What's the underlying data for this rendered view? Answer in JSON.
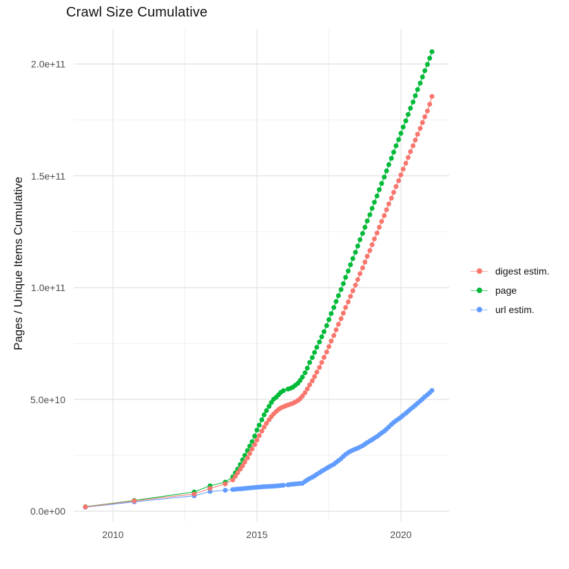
{
  "title": "Crawl Size Cumulative",
  "y_axis": {
    "label": "Pages / Unique Items Cumulative",
    "ticks": [
      {
        "label": "0.0e+00",
        "value_e9": 0
      },
      {
        "label": "5.0e+10",
        "value_e9": 50
      },
      {
        "label": "1.0e+11",
        "value_e9": 100
      },
      {
        "label": "1.5e+11",
        "value_e9": 150
      },
      {
        "label": "2.0e+11",
        "value_e9": 200
      }
    ]
  },
  "x_axis": {
    "ticks": [
      {
        "label": "2010",
        "value": 2010
      },
      {
        "label": "2015",
        "value": 2015
      },
      {
        "label": "2020",
        "value": 2020
      }
    ]
  },
  "legend": {
    "position": "right",
    "items": [
      {
        "label": "digest estim.",
        "color": "#F8766D"
      },
      {
        "label": "page",
        "color": "#00BA38"
      },
      {
        "label": "url estim.",
        "color": "#619CFF"
      }
    ]
  },
  "chart_data": {
    "type": "scatter",
    "title": "Crawl Size Cumulative",
    "xlabel": "",
    "ylabel": "Pages / Unique Items Cumulative",
    "x_unit": "year (decimal)",
    "y_unit": "count, stored as billions (1e9)",
    "xlim": [
      2008.64,
      2021.67
    ],
    "ylim_e9": [
      -4.6,
      215.7
    ],
    "grid": true,
    "legend_position": "right",
    "x_major_ticks": [
      2010,
      2015,
      2020
    ],
    "x_minor_ticks": [
      2012.5,
      2017.5
    ],
    "y_major_ticks_e9": [
      0,
      50,
      100,
      150,
      200
    ],
    "y_minor_ticks_e9": [
      25,
      75,
      125,
      175
    ],
    "series": [
      {
        "name": "page",
        "color": "#00BA38",
        "points": [
          [
            2009.04,
            2.0
          ],
          [
            2010.74,
            4.8
          ],
          [
            2012.82,
            8.6
          ],
          [
            2013.37,
            11.4
          ],
          [
            2013.9,
            13.0
          ],
          [
            2014.16,
            15.4
          ],
          [
            2014.25,
            17.2
          ],
          [
            2014.33,
            18.9
          ],
          [
            2014.42,
            20.9
          ],
          [
            2014.5,
            23.0
          ],
          [
            2014.58,
            25.0
          ],
          [
            2014.67,
            27.1
          ],
          [
            2014.75,
            29.1
          ],
          [
            2014.83,
            31.1
          ],
          [
            2014.92,
            33.6
          ],
          [
            2015.0,
            36.3
          ],
          [
            2015.08,
            38.5
          ],
          [
            2015.17,
            40.9
          ],
          [
            2015.25,
            43.1
          ],
          [
            2015.33,
            45.0
          ],
          [
            2015.42,
            46.9
          ],
          [
            2015.5,
            48.6
          ],
          [
            2015.58,
            50.1
          ],
          [
            2015.67,
            51.0
          ],
          [
            2015.75,
            52.1
          ],
          [
            2015.83,
            53.2
          ],
          [
            2015.92,
            53.9
          ],
          [
            2016.08,
            54.6
          ],
          [
            2016.17,
            55.0
          ],
          [
            2016.25,
            55.5
          ],
          [
            2016.33,
            56.3
          ],
          [
            2016.42,
            57.2
          ],
          [
            2016.5,
            58.5
          ],
          [
            2016.58,
            60.0
          ],
          [
            2016.67,
            61.9
          ],
          [
            2016.75,
            64.0
          ],
          [
            2016.83,
            66.5
          ],
          [
            2016.92,
            68.7
          ],
          [
            2017.0,
            71.0
          ],
          [
            2017.08,
            73.3
          ],
          [
            2017.17,
            75.7
          ],
          [
            2017.25,
            78.0
          ],
          [
            2017.33,
            80.3
          ],
          [
            2017.42,
            83.0
          ],
          [
            2017.5,
            85.7
          ],
          [
            2017.58,
            88.4
          ],
          [
            2017.67,
            91.1
          ],
          [
            2017.75,
            93.8
          ],
          [
            2017.83,
            96.4
          ],
          [
            2017.92,
            99.1
          ],
          [
            2018.0,
            101.8
          ],
          [
            2018.08,
            104.6
          ],
          [
            2018.17,
            107.4
          ],
          [
            2018.25,
            110.2
          ],
          [
            2018.33,
            113.0
          ],
          [
            2018.42,
            115.8
          ],
          [
            2018.5,
            118.6
          ],
          [
            2018.58,
            121.4
          ],
          [
            2018.67,
            124.2
          ],
          [
            2018.75,
            127.0
          ],
          [
            2018.83,
            129.8
          ],
          [
            2018.92,
            132.6
          ],
          [
            2019.0,
            135.4
          ],
          [
            2019.08,
            138.2
          ],
          [
            2019.17,
            141.0
          ],
          [
            2019.25,
            143.8
          ],
          [
            2019.33,
            146.6
          ],
          [
            2019.42,
            149.4
          ],
          [
            2019.5,
            152.2
          ],
          [
            2019.58,
            155.0
          ],
          [
            2019.67,
            157.8
          ],
          [
            2019.75,
            160.6
          ],
          [
            2019.83,
            163.4
          ],
          [
            2019.92,
            166.2
          ],
          [
            2020.0,
            169.0
          ],
          [
            2020.08,
            171.8
          ],
          [
            2020.17,
            174.6
          ],
          [
            2020.25,
            177.4
          ],
          [
            2020.33,
            180.2
          ],
          [
            2020.42,
            183.0
          ],
          [
            2020.5,
            185.8
          ],
          [
            2020.58,
            188.6
          ],
          [
            2020.67,
            191.4
          ],
          [
            2020.75,
            194.2
          ],
          [
            2020.83,
            197.0
          ],
          [
            2020.92,
            199.8
          ],
          [
            2021.0,
            202.6
          ],
          [
            2021.08,
            205.5
          ]
        ]
      },
      {
        "name": "url estim.",
        "color": "#619CFF",
        "points": [
          [
            2009.04,
            1.8
          ],
          [
            2010.74,
            4.2
          ],
          [
            2012.82,
            6.9
          ],
          [
            2013.37,
            8.8
          ],
          [
            2013.9,
            9.4
          ],
          [
            2014.16,
            9.7
          ],
          [
            2014.25,
            9.8
          ],
          [
            2014.33,
            9.9
          ],
          [
            2014.42,
            10.0
          ],
          [
            2014.5,
            10.1
          ],
          [
            2014.58,
            10.2
          ],
          [
            2014.67,
            10.3
          ],
          [
            2014.75,
            10.4
          ],
          [
            2014.83,
            10.5
          ],
          [
            2014.92,
            10.6
          ],
          [
            2015.0,
            10.7
          ],
          [
            2015.08,
            10.8
          ],
          [
            2015.17,
            10.9
          ],
          [
            2015.25,
            11.0
          ],
          [
            2015.33,
            11.0
          ],
          [
            2015.42,
            11.1
          ],
          [
            2015.5,
            11.1
          ],
          [
            2015.58,
            11.2
          ],
          [
            2015.67,
            11.3
          ],
          [
            2015.75,
            11.4
          ],
          [
            2015.83,
            11.5
          ],
          [
            2015.92,
            11.6
          ],
          [
            2016.08,
            11.8
          ],
          [
            2016.17,
            12.0
          ],
          [
            2016.25,
            12.1
          ],
          [
            2016.33,
            12.2
          ],
          [
            2016.42,
            12.3
          ],
          [
            2016.5,
            12.4
          ],
          [
            2016.58,
            12.5
          ],
          [
            2016.67,
            13.3
          ],
          [
            2016.75,
            14.0
          ],
          [
            2016.83,
            14.6
          ],
          [
            2016.92,
            15.2
          ],
          [
            2017.0,
            15.8
          ],
          [
            2017.08,
            16.5
          ],
          [
            2017.17,
            17.2
          ],
          [
            2017.25,
            17.9
          ],
          [
            2017.33,
            18.5
          ],
          [
            2017.42,
            19.2
          ],
          [
            2017.5,
            19.8
          ],
          [
            2017.58,
            20.4
          ],
          [
            2017.67,
            21.0
          ],
          [
            2017.75,
            21.8
          ],
          [
            2017.83,
            22.6
          ],
          [
            2017.92,
            23.5
          ],
          [
            2018.0,
            24.5
          ],
          [
            2018.08,
            25.4
          ],
          [
            2018.17,
            26.2
          ],
          [
            2018.25,
            26.8
          ],
          [
            2018.33,
            27.3
          ],
          [
            2018.42,
            27.8
          ],
          [
            2018.5,
            28.2
          ],
          [
            2018.58,
            28.7
          ],
          [
            2018.67,
            29.3
          ],
          [
            2018.75,
            30.0
          ],
          [
            2018.83,
            30.7
          ],
          [
            2018.92,
            31.4
          ],
          [
            2019.0,
            32.0
          ],
          [
            2019.08,
            32.7
          ],
          [
            2019.17,
            33.4
          ],
          [
            2019.25,
            34.2
          ],
          [
            2019.33,
            35.0
          ],
          [
            2019.42,
            35.8
          ],
          [
            2019.5,
            36.7
          ],
          [
            2019.58,
            37.7
          ],
          [
            2019.67,
            38.8
          ],
          [
            2019.75,
            39.7
          ],
          [
            2019.83,
            40.5
          ],
          [
            2019.92,
            41.3
          ],
          [
            2020.0,
            42.0
          ],
          [
            2020.08,
            42.9
          ],
          [
            2020.17,
            43.8
          ],
          [
            2020.25,
            44.7
          ],
          [
            2020.33,
            45.6
          ],
          [
            2020.42,
            46.5
          ],
          [
            2020.5,
            47.4
          ],
          [
            2020.58,
            48.3
          ],
          [
            2020.67,
            49.3
          ],
          [
            2020.75,
            50.2
          ],
          [
            2020.83,
            51.2
          ],
          [
            2020.92,
            52.1
          ],
          [
            2021.0,
            53.0
          ],
          [
            2021.08,
            54.0
          ]
        ]
      },
      {
        "name": "digest estim.",
        "color": "#F8766D",
        "points": [
          [
            2009.04,
            1.9
          ],
          [
            2010.74,
            4.6
          ],
          [
            2012.82,
            7.7
          ],
          [
            2013.37,
            10.2
          ],
          [
            2013.9,
            12.2
          ],
          [
            2014.16,
            14.0
          ],
          [
            2014.25,
            15.6
          ],
          [
            2014.33,
            17.2
          ],
          [
            2014.42,
            18.8
          ],
          [
            2014.5,
            20.3
          ],
          [
            2014.58,
            22.0
          ],
          [
            2014.67,
            23.8
          ],
          [
            2014.75,
            25.8
          ],
          [
            2014.83,
            27.8
          ],
          [
            2014.92,
            29.8
          ],
          [
            2015.0,
            31.8
          ],
          [
            2015.08,
            33.8
          ],
          [
            2015.17,
            35.8
          ],
          [
            2015.25,
            37.6
          ],
          [
            2015.33,
            39.3
          ],
          [
            2015.42,
            40.9
          ],
          [
            2015.5,
            42.3
          ],
          [
            2015.58,
            43.5
          ],
          [
            2015.67,
            44.6
          ],
          [
            2015.75,
            45.5
          ],
          [
            2015.83,
            46.2
          ],
          [
            2015.92,
            46.7
          ],
          [
            2016.0,
            47.1
          ],
          [
            2016.08,
            47.5
          ],
          [
            2016.17,
            47.9
          ],
          [
            2016.25,
            48.3
          ],
          [
            2016.33,
            48.8
          ],
          [
            2016.42,
            49.5
          ],
          [
            2016.5,
            50.3
          ],
          [
            2016.58,
            51.5
          ],
          [
            2016.67,
            53.0
          ],
          [
            2016.75,
            54.7
          ],
          [
            2016.83,
            56.5
          ],
          [
            2016.92,
            58.3
          ],
          [
            2017.0,
            60.2
          ],
          [
            2017.08,
            62.2
          ],
          [
            2017.17,
            64.3
          ],
          [
            2017.25,
            66.5
          ],
          [
            2017.33,
            68.8
          ],
          [
            2017.42,
            71.2
          ],
          [
            2017.5,
            73.6
          ],
          [
            2017.58,
            76.1
          ],
          [
            2017.67,
            78.6
          ],
          [
            2017.75,
            81.1
          ],
          [
            2017.83,
            83.6
          ],
          [
            2017.92,
            86.1
          ],
          [
            2018.0,
            88.6
          ],
          [
            2018.08,
            91.1
          ],
          [
            2018.17,
            93.6
          ],
          [
            2018.25,
            96.1
          ],
          [
            2018.33,
            98.6
          ],
          [
            2018.42,
            101.1
          ],
          [
            2018.5,
            103.6
          ],
          [
            2018.58,
            106.2
          ],
          [
            2018.67,
            108.8
          ],
          [
            2018.75,
            111.4
          ],
          [
            2018.83,
            114.0
          ],
          [
            2018.92,
            116.6
          ],
          [
            2019.0,
            119.2
          ],
          [
            2019.08,
            121.8
          ],
          [
            2019.17,
            124.4
          ],
          [
            2019.25,
            127.0
          ],
          [
            2019.33,
            129.6
          ],
          [
            2019.42,
            132.2
          ],
          [
            2019.5,
            134.8
          ],
          [
            2019.58,
            137.4
          ],
          [
            2019.67,
            140.0
          ],
          [
            2019.75,
            142.6
          ],
          [
            2019.83,
            145.2
          ],
          [
            2019.92,
            147.8
          ],
          [
            2020.0,
            150.4
          ],
          [
            2020.08,
            153.0
          ],
          [
            2020.17,
            155.6
          ],
          [
            2020.25,
            158.2
          ],
          [
            2020.33,
            160.8
          ],
          [
            2020.42,
            163.4
          ],
          [
            2020.5,
            166.0
          ],
          [
            2020.58,
            168.6
          ],
          [
            2020.67,
            171.2
          ],
          [
            2020.75,
            173.8
          ],
          [
            2020.83,
            176.4
          ],
          [
            2020.92,
            179.0
          ],
          [
            2021.0,
            182.0
          ],
          [
            2021.08,
            185.5
          ]
        ]
      }
    ]
  }
}
